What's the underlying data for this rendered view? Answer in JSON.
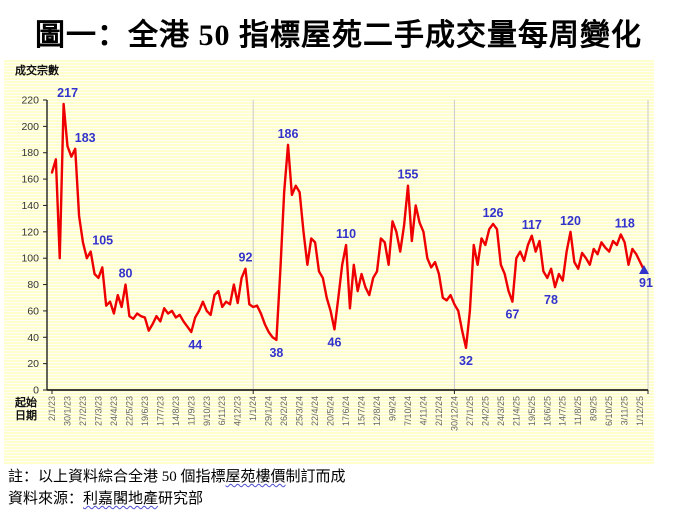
{
  "chart_data": {
    "type": "line",
    "title": "圖一：全港 50 指標屋苑二手成交量每周變化",
    "ylabel": "成交宗數",
    "xlabel": "起始日期",
    "ylim": [
      0,
      220
    ],
    "y_ticks": [
      0,
      20,
      40,
      60,
      80,
      100,
      120,
      140,
      160,
      180,
      200,
      220
    ],
    "x_tick_interval": 4,
    "x_tick_labels": [
      "2/1/23",
      "30/1/23",
      "27/2/23",
      "27/3/23",
      "24/4/23",
      "22/5/23",
      "19/6/23",
      "17/7/23",
      "14/8/23",
      "11/9/23",
      "9/10/23",
      "6/11/23",
      "4/12/23",
      "1/1/24",
      "29/1/24",
      "26/2/24",
      "25/3/24",
      "22/4/24",
      "20/5/24",
      "17/6/24",
      "15/7/24",
      "12/8/24",
      "9/9/24",
      "7/10/24",
      "4/11/24",
      "2/12/24",
      "30/12/24",
      "27/1/25",
      "24/2/25",
      "24/3/25",
      "21/4/25",
      "19/5/25",
      "16/6/25",
      "14/7/25",
      "11/8/25",
      "8/9/25",
      "6/10/25",
      "3/11/25",
      "1/12/25"
    ],
    "values": [
      165,
      175,
      100,
      217,
      185,
      177,
      183,
      132,
      112,
      100,
      105,
      88,
      85,
      93,
      64,
      67,
      58,
      72,
      63,
      80,
      56,
      54,
      58,
      56,
      55,
      45,
      50,
      56,
      52,
      62,
      58,
      60,
      55,
      57,
      52,
      48,
      44,
      55,
      60,
      67,
      60,
      57,
      72,
      75,
      63,
      67,
      65,
      80,
      66,
      85,
      92,
      65,
      63,
      64,
      58,
      50,
      44,
      40,
      38,
      90,
      150,
      186,
      148,
      155,
      150,
      120,
      95,
      115,
      112,
      90,
      85,
      70,
      60,
      46,
      70,
      95,
      110,
      62,
      95,
      75,
      88,
      78,
      72,
      85,
      90,
      115,
      112,
      95,
      128,
      120,
      105,
      125,
      155,
      113,
      140,
      127,
      120,
      100,
      93,
      97,
      88,
      70,
      68,
      72,
      65,
      60,
      45,
      32,
      60,
      110,
      95,
      115,
      110,
      122,
      126,
      122,
      95,
      88,
      75,
      67,
      100,
      105,
      98,
      110,
      117,
      105,
      113,
      90,
      85,
      92,
      78,
      88,
      83,
      105,
      120,
      97,
      92,
      104,
      100,
      95,
      107,
      103,
      112,
      108,
      105,
      113,
      110,
      118,
      112,
      95,
      107,
      103,
      97,
      91
    ],
    "labeled_points": [
      {
        "index": 3,
        "value": 217,
        "label": "217",
        "position": "above",
        "dx": 4
      },
      {
        "index": 6,
        "value": 183,
        "label": "183",
        "position": "above",
        "dx": 10
      },
      {
        "index": 10,
        "value": 105,
        "label": "105",
        "position": "above",
        "dx": 12
      },
      {
        "index": 19,
        "value": 80,
        "label": "80",
        "position": "above",
        "dx": 0
      },
      {
        "index": 36,
        "value": 44,
        "label": "44",
        "position": "below",
        "dx": 4
      },
      {
        "index": 50,
        "value": 92,
        "label": "92",
        "position": "above",
        "dx": 0
      },
      {
        "index": 58,
        "value": 38,
        "label": "38",
        "position": "below",
        "dx": 0
      },
      {
        "index": 61,
        "value": 186,
        "label": "186",
        "position": "above",
        "dx": 0
      },
      {
        "index": 73,
        "value": 46,
        "label": "46",
        "position": "below",
        "dx": 0
      },
      {
        "index": 76,
        "value": 110,
        "label": "110",
        "position": "above",
        "dx": 0
      },
      {
        "index": 92,
        "value": 155,
        "label": "155",
        "position": "above",
        "dx": 0
      },
      {
        "index": 107,
        "value": 32,
        "label": "32",
        "position": "below",
        "dx": 0
      },
      {
        "index": 114,
        "value": 126,
        "label": "126",
        "position": "above",
        "dx": 0
      },
      {
        "index": 119,
        "value": 67,
        "label": "67",
        "position": "below",
        "dx": 0
      },
      {
        "index": 124,
        "value": 117,
        "label": "117",
        "position": "above",
        "dx": 0
      },
      {
        "index": 130,
        "value": 78,
        "label": "78",
        "position": "below",
        "dx": -4
      },
      {
        "index": 134,
        "value": 120,
        "label": "120",
        "position": "above",
        "dx": 0
      },
      {
        "index": 147,
        "value": 118,
        "label": "118",
        "position": "above",
        "dx": 4
      },
      {
        "index": 153,
        "value": 91,
        "label": "91",
        "position": "below",
        "dx": 2
      }
    ],
    "year_line_indices": [
      52,
      104
    ],
    "grid_on": true,
    "legend": "none",
    "line_color": "#ee0000",
    "label_color": "#3333cc",
    "axis_color": "#222222",
    "grid_color": "#c9c9c9",
    "plot_bg_stripe": "#ffffcd",
    "last_marker": "triangle-up"
  },
  "notes": {
    "line1": {
      "prefix": "註：以上資料綜合全港 50 個指標",
      "underlined": "屋苑樓價",
      "suffix": "制訂而成"
    },
    "line2": {
      "prefix": "資料來源：",
      "underlined": "利嘉閣地產",
      "suffix": "研究部"
    }
  }
}
